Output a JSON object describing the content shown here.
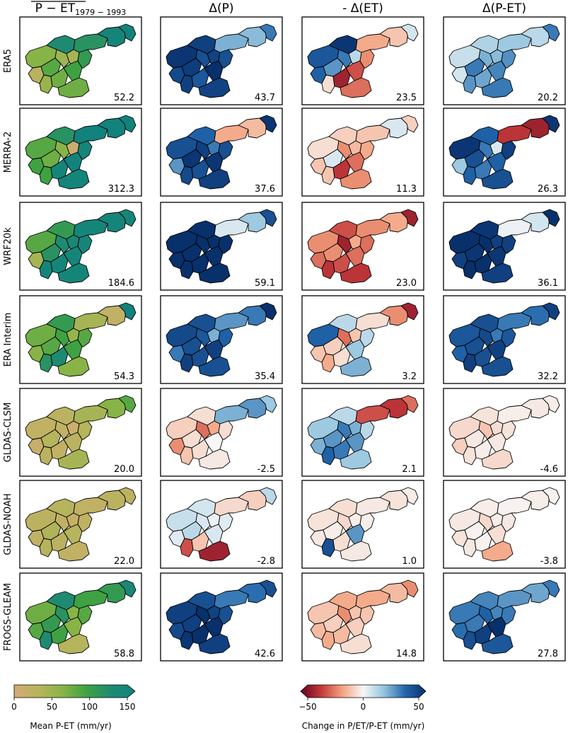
{
  "columns": [
    {
      "title_main": "P − ET",
      "title_sub": "1979 − 1993",
      "overline": true,
      "scale": "seq"
    },
    {
      "title_main": "Δ(P)",
      "scale": "div"
    },
    {
      "title_main": "- Δ(ET)",
      "scale": "div"
    },
    {
      "title_main": "Δ(P-ET)",
      "scale": "div"
    }
  ],
  "rows": [
    {
      "label": "ERA5",
      "values": [
        "52.2",
        "43.7",
        "23.5",
        "20.2"
      ],
      "tone": [
        [
          60,
          120,
          25,
          80,
          45,
          40,
          50,
          70,
          90,
          70,
          100,
          110,
          140,
          160
        ],
        [
          48,
          45,
          42,
          46,
          40,
          44,
          45,
          38,
          50,
          44,
          40,
          20,
          18,
          30
        ],
        [
          38,
          48,
          35,
          25,
          30,
          10,
          -5,
          -40,
          -30,
          -25,
          -20,
          -15,
          -10,
          6
        ],
        [
          8,
          12,
          6,
          30,
          20,
          18,
          25,
          22,
          28,
          30,
          26,
          15,
          10,
          30
        ]
      ]
    },
    {
      "label": "MERRA-2",
      "values": [
        "312.3",
        "37.6",
        "11.3",
        "26.3"
      ],
      "tone": [
        [
          80,
          110,
          90,
          70,
          60,
          10,
          90,
          140,
          150,
          140,
          140,
          150,
          150,
          150
        ],
        [
          40,
          35,
          25,
          48,
          45,
          30,
          42,
          40,
          48,
          45,
          40,
          -15,
          -12,
          48
        ],
        [
          -5,
          -8,
          -10,
          5,
          -20,
          -12,
          -10,
          -35,
          -25,
          -20,
          -15,
          -10,
          5,
          -8
        ],
        [
          48,
          35,
          15,
          40,
          30,
          5,
          35,
          30,
          35,
          40,
          45,
          -35,
          -40,
          48
        ]
      ]
    },
    {
      "label": "WRF20k",
      "values": [
        "184.6",
        "59.1",
        "23.0",
        "36.1"
      ],
      "tone": [
        [
          80,
          100,
          40,
          110,
          120,
          130,
          140,
          140,
          140,
          140,
          140,
          140,
          140,
          140
        ],
        [
          55,
          55,
          50,
          55,
          55,
          50,
          55,
          55,
          55,
          55,
          55,
          5,
          15,
          40
        ],
        [
          -20,
          -30,
          -25,
          -20,
          -40,
          -15,
          -35,
          -30,
          -25,
          -35,
          -25,
          -20,
          -15,
          -40
        ],
        [
          50,
          48,
          45,
          48,
          50,
          45,
          50,
          50,
          48,
          45,
          45,
          2,
          6,
          50
        ]
      ]
    },
    {
      "label": "ERA Interim",
      "values": [
        "54.3",
        "35.4",
        "3.2",
        "32.2"
      ],
      "tone": [
        [
          70,
          100,
          60,
          80,
          90,
          50,
          110,
          120,
          90,
          60,
          80,
          40,
          20,
          150
        ],
        [
          42,
          40,
          30,
          40,
          38,
          20,
          45,
          40,
          45,
          40,
          35,
          25,
          30,
          50
        ],
        [
          35,
          10,
          -10,
          -8,
          -25,
          -10,
          -15,
          -5,
          15,
          20,
          10,
          -5,
          -20,
          -40
        ],
        [
          38,
          40,
          35,
          40,
          42,
          30,
          45,
          40,
          45,
          40,
          38,
          30,
          32,
          45
        ]
      ]
    },
    {
      "label": "GLDAS-CLSM",
      "values": [
        "20.0",
        "-2.5",
        "2.1",
        "-4.6"
      ],
      "tone": [
        [
          20,
          25,
          15,
          30,
          20,
          10,
          25,
          20,
          25,
          40,
          30,
          40,
          60,
          80
        ],
        [
          -8,
          -5,
          -20,
          -5,
          -25,
          -15,
          -10,
          -5,
          0,
          -3,
          -5,
          20,
          25,
          15
        ],
        [
          15,
          10,
          20,
          25,
          30,
          20,
          35,
          30,
          25,
          15,
          10,
          -30,
          -35,
          -25
        ],
        [
          -6,
          -4,
          -8,
          -3,
          -10,
          -5,
          -4,
          -2,
          -3,
          -6,
          -4,
          -2,
          -3,
          -2
        ]
      ]
    },
    {
      "label": "GLDAS-NOAH",
      "values": [
        "22.0",
        "-2.8",
        "1.0",
        "-3.8"
      ],
      "tone": [
        [
          25,
          30,
          20,
          35,
          20,
          15,
          30,
          25,
          30,
          20,
          20,
          20,
          25,
          25
        ],
        [
          8,
          6,
          4,
          10,
          5,
          2,
          -30,
          -10,
          5,
          -40,
          4,
          -6,
          -8,
          10
        ],
        [
          -4,
          -5,
          -3,
          -2,
          -6,
          -2,
          40,
          -5,
          25,
          -3,
          -2,
          -3,
          -4,
          -2
        ],
        [
          -3,
          -2,
          -4,
          -1,
          -6,
          -2,
          -3,
          -1,
          -5,
          -15,
          -3,
          -1,
          -2,
          -1
        ]
      ]
    },
    {
      "label": "FROGS-GLEAM",
      "values": [
        "58.8",
        "42.6",
        "14.8",
        "27.8"
      ],
      "tone": [
        [
          70,
          120,
          80,
          100,
          110,
          60,
          120,
          90,
          60,
          30,
          80,
          90,
          100,
          130
        ],
        [
          45,
          40,
          42,
          45,
          50,
          44,
          48,
          55,
          50,
          45,
          40,
          30,
          32,
          40
        ],
        [
          -10,
          -15,
          -12,
          -8,
          -20,
          -10,
          -15,
          -12,
          -8,
          -5,
          -10,
          -15,
          -12,
          -20
        ],
        [
          30,
          28,
          32,
          30,
          35,
          28,
          40,
          45,
          50,
          38,
          30,
          25,
          22,
          30
        ]
      ]
    }
  ],
  "colorbars": [
    {
      "label": "Mean P-ET (mm/yr)",
      "ticks": [
        "0",
        "50",
        "100",
        "150"
      ],
      "stops": [
        "#d6aa75",
        "#b6b45d",
        "#88b447",
        "#3ea242",
        "#1f8a72",
        "#12827d"
      ]
    },
    {
      "label": "Change in P/ET/P-ET (mm/yr)",
      "ticks": [
        "−50",
        "0",
        "50"
      ],
      "stops": [
        "#67001f",
        "#c33a3b",
        "#f4a380",
        "#f7f7f7",
        "#93c4de",
        "#2266ac",
        "#08306b"
      ]
    }
  ]
}
